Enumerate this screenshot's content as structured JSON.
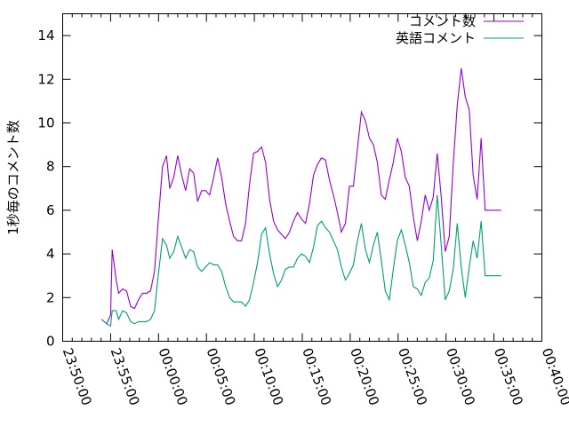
{
  "chart_data": {
    "type": "line",
    "title": "",
    "xlabel": "",
    "ylabel": "1秒毎のコメント数",
    "ylim": [
      0,
      15
    ],
    "xlim": [
      "23:50:00",
      "00:40:00"
    ],
    "x_ticks": [
      "23:50:00",
      "23:55:00",
      "00:00:00",
      "00:05:00",
      "00:10:00",
      "00:15:00",
      "00:20:00",
      "00:25:00",
      "00:30:00",
      "00:35:00",
      "00:40:00"
    ],
    "y_ticks": [
      "0",
      "2",
      "4",
      "6",
      "8",
      "10",
      "12",
      "14"
    ],
    "legend_position": "top-right",
    "grid": false,
    "x": [
      "23:54:05",
      "23:54:35",
      "23:55:00",
      "23:55:10",
      "23:55:35",
      "23:55:50",
      "23:56:15",
      "23:56:40",
      "23:57:05",
      "23:57:30",
      "23:57:55",
      "23:58:20",
      "23:58:45",
      "23:59:10",
      "23:59:35",
      "23:59:55",
      "00:00:25",
      "00:00:50",
      "00:01:10",
      "00:01:35",
      "00:02:00",
      "00:02:25",
      "00:02:50",
      "00:03:15",
      "00:03:40",
      "00:04:05",
      "00:04:30",
      "00:04:55",
      "00:05:20",
      "00:05:45",
      "00:06:10",
      "00:06:35",
      "00:07:00",
      "00:07:25",
      "00:07:50",
      "00:08:15",
      "00:08:40",
      "00:09:05",
      "00:09:30",
      "00:09:55",
      "00:10:20",
      "00:10:45",
      "00:11:10",
      "00:11:35",
      "00:12:00",
      "00:12:25",
      "00:12:50",
      "00:13:15",
      "00:13:40",
      "00:14:05",
      "00:14:30",
      "00:14:55",
      "00:15:20",
      "00:15:45",
      "00:16:10",
      "00:16:35",
      "00:17:00",
      "00:17:25",
      "00:17:50",
      "00:18:15",
      "00:18:40",
      "00:19:05",
      "00:19:30",
      "00:19:55",
      "00:20:20",
      "00:20:45",
      "00:21:10",
      "00:21:35",
      "00:22:00",
      "00:22:25",
      "00:22:50",
      "00:23:15",
      "00:23:40",
      "00:24:05",
      "00:24:30",
      "00:24:55",
      "00:25:20",
      "00:25:45",
      "00:26:10",
      "00:26:35",
      "00:27:00",
      "00:27:25",
      "00:27:50",
      "00:28:15",
      "00:28:40",
      "00:29:05",
      "00:29:30",
      "00:29:55",
      "00:30:20",
      "00:30:45",
      "00:31:10",
      "00:31:35",
      "00:32:00",
      "00:32:25",
      "00:32:50",
      "00:33:15",
      "00:33:40",
      "00:34:05",
      "00:34:30",
      "00:34:55",
      "00:35:20",
      "00:35:45"
    ],
    "series": [
      {
        "name": "コメント数",
        "color": "#9400d3",
        "values": [
          1.0,
          0.8,
          1.2,
          4.2,
          2.8,
          2.2,
          2.4,
          2.3,
          1.6,
          1.5,
          1.9,
          2.2,
          2.2,
          2.3,
          3.2,
          5.2,
          8.0,
          8.5,
          7.0,
          7.5,
          8.5,
          7.6,
          6.9,
          7.9,
          7.7,
          6.4,
          6.9,
          6.9,
          6.7,
          7.5,
          8.4,
          7.5,
          6.3,
          5.5,
          4.8,
          4.6,
          4.6,
          5.4,
          7.2,
          8.6,
          8.7,
          8.9,
          8.2,
          6.5,
          5.5,
          5.1,
          4.9,
          4.7,
          5.0,
          5.5,
          5.9,
          5.6,
          5.4,
          6.3,
          7.6,
          8.1,
          8.4,
          8.3,
          7.4,
          6.7,
          5.9,
          5.0,
          5.4,
          7.1,
          7.1,
          8.8,
          10.5,
          10.1,
          9.3,
          9.0,
          8.2,
          6.7,
          6.5,
          7.4,
          8.2,
          9.3,
          8.7,
          7.5,
          7.1,
          5.7,
          4.6,
          5.5,
          6.7,
          6.0,
          6.6,
          8.6,
          6.6,
          4.1,
          4.8,
          8.1,
          10.8,
          12.5,
          11.2,
          10.6,
          7.6,
          6.5,
          9.3,
          6.0,
          6.0,
          6.0,
          6.0,
          6.0
        ]
      },
      {
        "name": "英語コメント",
        "color": "#009e73",
        "values": [
          1.0,
          0.8,
          0.7,
          1.4,
          1.4,
          1.0,
          1.4,
          1.3,
          0.9,
          0.8,
          0.9,
          0.9,
          0.9,
          1.0,
          1.4,
          2.8,
          4.7,
          4.4,
          3.8,
          4.1,
          4.8,
          4.3,
          3.8,
          4.2,
          4.1,
          3.4,
          3.2,
          3.4,
          3.6,
          3.5,
          3.5,
          3.2,
          2.5,
          2.0,
          1.8,
          1.8,
          1.8,
          1.6,
          1.9,
          2.7,
          3.6,
          4.9,
          5.2,
          4.0,
          3.1,
          2.5,
          2.8,
          3.3,
          3.4,
          3.4,
          3.8,
          4.0,
          3.9,
          3.6,
          4.3,
          5.3,
          5.5,
          5.2,
          5.0,
          4.6,
          4.2,
          3.4,
          2.8,
          3.1,
          3.5,
          4.6,
          5.4,
          4.2,
          3.6,
          4.4,
          5.0,
          3.7,
          2.3,
          1.9,
          3.3,
          4.6,
          5.1,
          4.4,
          3.6,
          2.5,
          2.4,
          2.1,
          2.7,
          2.9,
          3.7,
          6.7,
          4.4,
          1.9,
          2.3,
          3.3,
          5.4,
          3.4,
          2.0,
          3.4,
          4.6,
          3.8,
          5.5,
          3.0,
          3.0,
          3.0,
          3.0,
          3.0
        ]
      }
    ]
  }
}
